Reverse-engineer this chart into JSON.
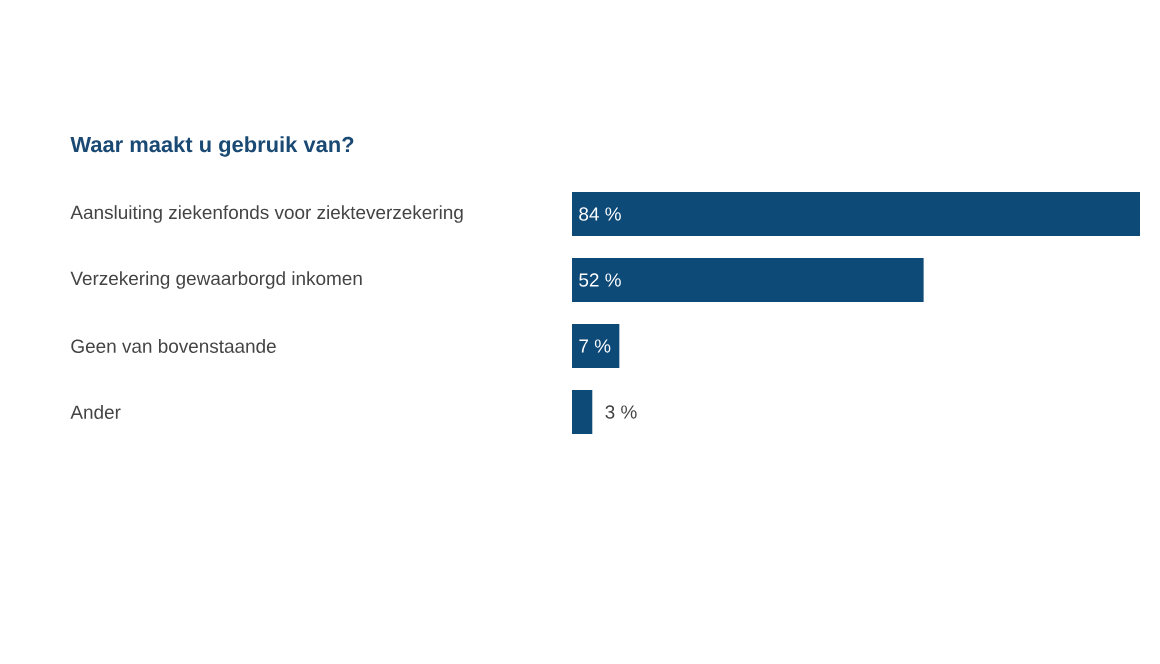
{
  "chart_data": {
    "type": "bar",
    "orientation": "horizontal",
    "title": "Waar maakt u gebruik van?",
    "categories": [
      "Aansluiting ziekenfonds voor ziekteverzekering",
      "Verzekering gewaarborgd inkomen",
      "Geen van bovenstaande",
      "Ander"
    ],
    "values": [
      84,
      52,
      7,
      3
    ],
    "value_labels": [
      "84 %",
      "52 %",
      "7 %",
      "3 %"
    ],
    "color": "#0e4a78",
    "xlim": [
      0,
      84
    ],
    "tick_labels": "y"
  }
}
